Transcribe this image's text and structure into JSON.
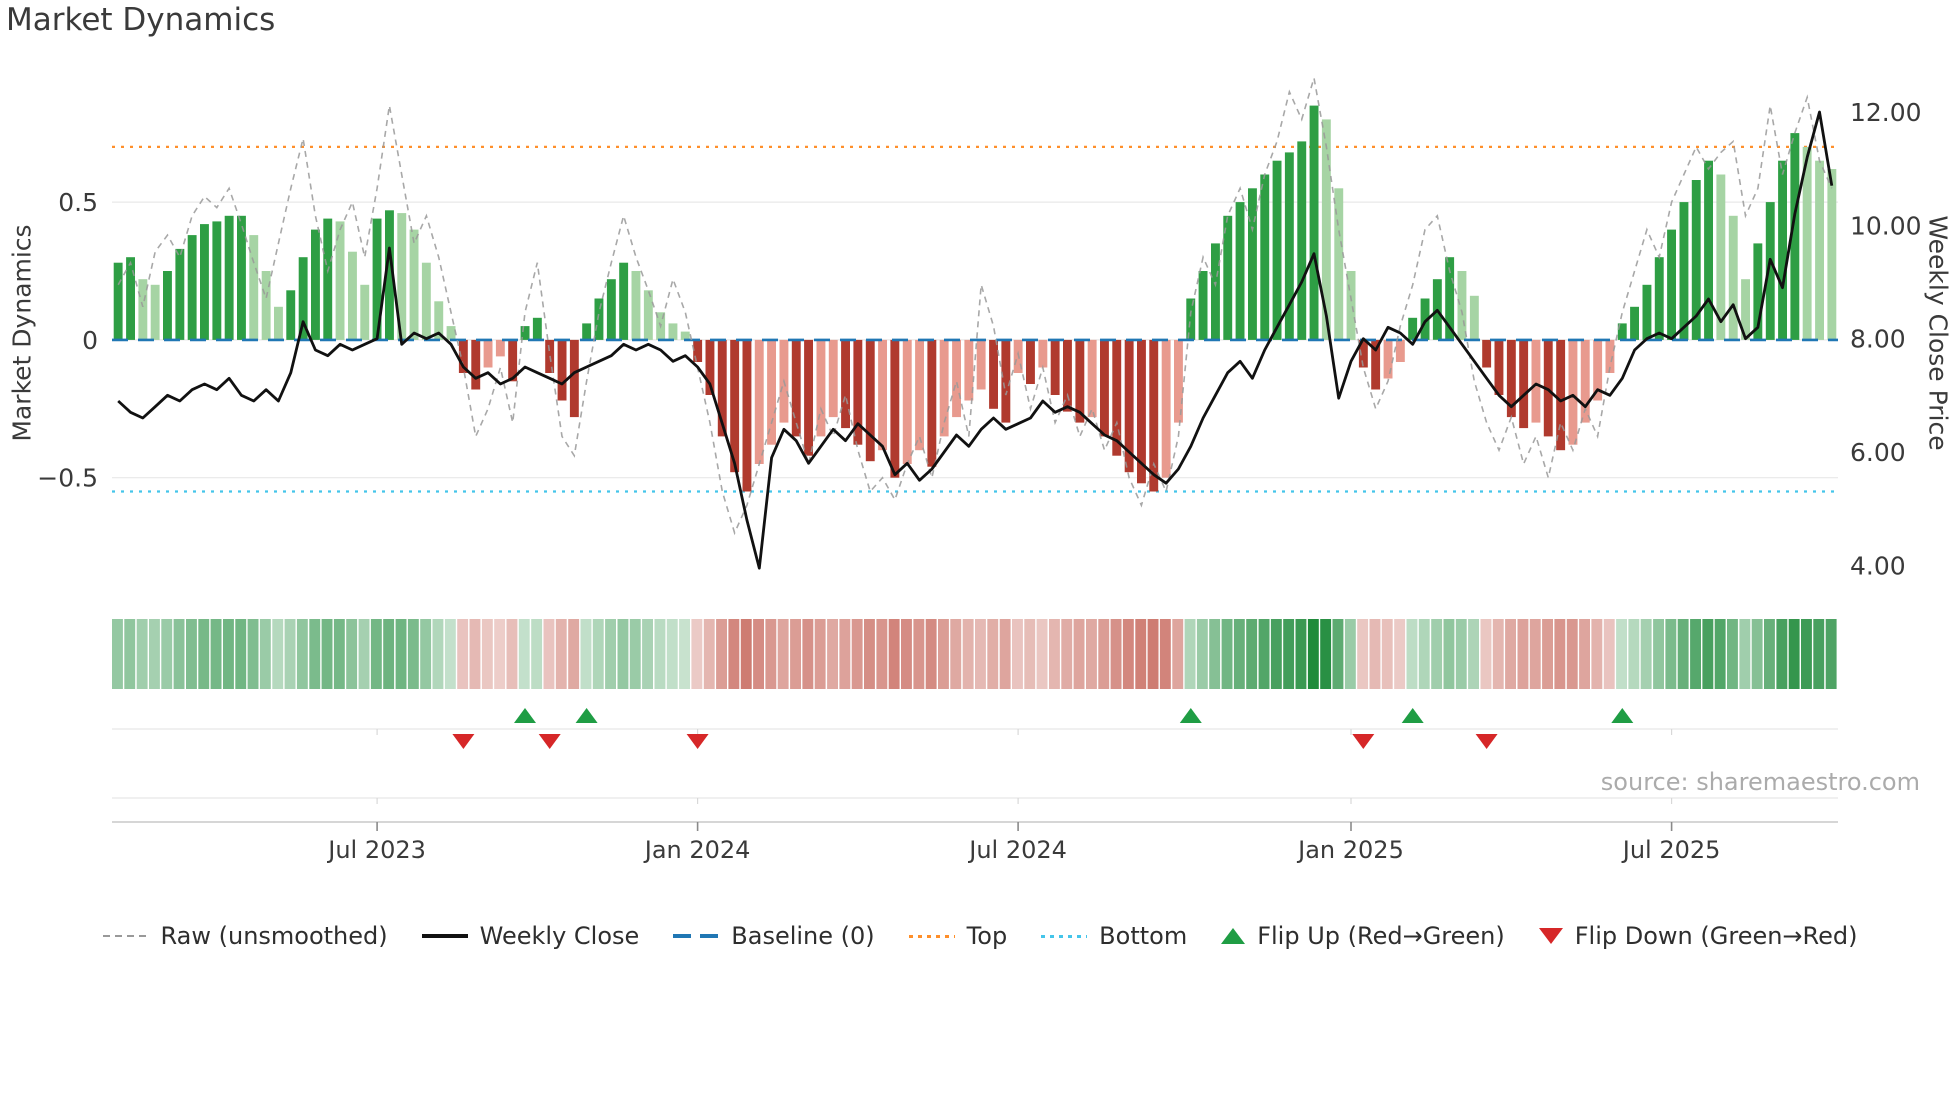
{
  "page": {
    "title": "Market Dynamics"
  },
  "colors": {
    "bar_up_strong": "#2e9e44",
    "bar_up_weak": "#a6d4a4",
    "bar_down_strong": "#b03a2e",
    "bar_down_weak": "#e89a8e",
    "raw_line": "#999999",
    "price_line": "#111111",
    "baseline": "#2077b4",
    "top_line": "#ff8f2a",
    "bottom_line": "#45c5ea",
    "flip_up": "#1f9d44",
    "flip_down": "#d62728",
    "heat_green": "#1f8b3b",
    "heat_red": "#bc4a3c",
    "grid": "#e8e8e8",
    "panel_line": "#e7e7e7",
    "axis_line": "#c9c9c9",
    "tick_mark": "#8a8a8a",
    "axis_text": "#3a3a3a"
  },
  "chart_data": {
    "type": "combo",
    "title": "Market Dynamics",
    "source": "source: sharemaestro.com",
    "x": {
      "freq": "weekly",
      "n": 140,
      "tick_weeks": [
        21,
        47,
        73,
        100,
        126
      ],
      "tick_labels": [
        "Jul 2023",
        "Jan 2024",
        "Jul 2024",
        "Jan 2025",
        "Jul 2025"
      ]
    },
    "left_axis": {
      "label": "Market Dynamics",
      "ticks": [
        0.5,
        0,
        -0.5
      ],
      "tick_labels": [
        "0.5",
        "0",
        "−0.5"
      ],
      "range": [
        -0.9,
        0.95
      ]
    },
    "right_axis": {
      "label": "Weekly Close Price",
      "ticks": [
        4,
        6,
        8,
        10,
        12
      ],
      "tick_labels": [
        "4.00",
        "6.00",
        "8.00",
        "10.00",
        "12.00"
      ],
      "range": [
        3.6,
        12.6
      ]
    },
    "reference_lines": {
      "baseline": 0,
      "top": 0.7,
      "bottom": -0.55
    },
    "series": [
      {
        "name": "Market Dynamics",
        "type": "bar",
        "axis": "left",
        "values": [
          0.28,
          0.3,
          0.22,
          0.2,
          0.25,
          0.33,
          0.38,
          0.42,
          0.43,
          0.45,
          0.45,
          0.38,
          0.25,
          0.12,
          0.18,
          0.3,
          0.4,
          0.44,
          0.43,
          0.32,
          0.2,
          0.44,
          0.47,
          0.46,
          0.4,
          0.28,
          0.14,
          0.05,
          -0.12,
          -0.18,
          -0.1,
          -0.06,
          -0.15,
          0.05,
          0.08,
          -0.12,
          -0.22,
          -0.28,
          0.06,
          0.15,
          0.22,
          0.28,
          0.25,
          0.18,
          0.1,
          0.06,
          0.03,
          -0.08,
          -0.2,
          -0.35,
          -0.48,
          -0.55,
          -0.45,
          -0.38,
          -0.3,
          -0.35,
          -0.42,
          -0.35,
          -0.28,
          -0.32,
          -0.38,
          -0.44,
          -0.4,
          -0.5,
          -0.45,
          -0.4,
          -0.46,
          -0.35,
          -0.28,
          -0.22,
          -0.18,
          -0.25,
          -0.3,
          -0.12,
          -0.16,
          -0.1,
          -0.2,
          -0.26,
          -0.3,
          -0.28,
          -0.35,
          -0.42,
          -0.48,
          -0.52,
          -0.55,
          -0.5,
          -0.3,
          0.15,
          0.25,
          0.35,
          0.45,
          0.5,
          0.55,
          0.6,
          0.65,
          0.68,
          0.72,
          0.85,
          0.8,
          0.55,
          0.25,
          -0.1,
          -0.18,
          -0.14,
          -0.08,
          0.08,
          0.15,
          0.22,
          0.3,
          0.25,
          0.16,
          -0.1,
          -0.2,
          -0.28,
          -0.32,
          -0.3,
          -0.35,
          -0.4,
          -0.38,
          -0.3,
          -0.22,
          -0.12,
          0.06,
          0.12,
          0.2,
          0.3,
          0.4,
          0.5,
          0.58,
          0.65,
          0.6,
          0.45,
          0.22,
          0.35,
          0.5,
          0.65,
          0.75,
          0.7,
          0.65,
          0.62
        ]
      },
      {
        "name": "Raw (unsmoothed)",
        "type": "line",
        "style": "dashed",
        "axis": "left",
        "values": [
          0.2,
          0.28,
          0.12,
          0.32,
          0.38,
          0.3,
          0.45,
          0.52,
          0.48,
          0.55,
          0.42,
          0.28,
          0.15,
          0.35,
          0.55,
          0.73,
          0.45,
          0.25,
          0.4,
          0.5,
          0.3,
          0.55,
          0.85,
          0.6,
          0.35,
          0.45,
          0.3,
          0.1,
          -0.1,
          -0.35,
          -0.25,
          -0.1,
          -0.3,
          0.1,
          0.28,
          -0.05,
          -0.35,
          -0.42,
          -0.15,
          0.1,
          0.28,
          0.45,
          0.3,
          0.18,
          0.05,
          0.22,
          0.1,
          -0.1,
          -0.3,
          -0.55,
          -0.7,
          -0.6,
          -0.45,
          -0.3,
          -0.15,
          -0.3,
          -0.45,
          -0.25,
          -0.35,
          -0.2,
          -0.4,
          -0.55,
          -0.5,
          -0.58,
          -0.45,
          -0.35,
          -0.5,
          -0.3,
          -0.15,
          -0.35,
          0.2,
          0.05,
          -0.2,
          -0.05,
          -0.25,
          -0.1,
          -0.3,
          -0.2,
          -0.35,
          -0.25,
          -0.4,
          -0.3,
          -0.5,
          -0.6,
          -0.45,
          -0.55,
          -0.35,
          0.1,
          0.3,
          0.2,
          0.45,
          0.55,
          0.4,
          0.6,
          0.72,
          0.9,
          0.8,
          0.95,
          0.7,
          0.4,
          0.15,
          -0.1,
          -0.25,
          -0.15,
          0.05,
          0.2,
          0.4,
          0.45,
          0.25,
          0.1,
          -0.15,
          -0.3,
          -0.4,
          -0.28,
          -0.45,
          -0.35,
          -0.5,
          -0.3,
          -0.4,
          -0.25,
          -0.35,
          -0.1,
          0.1,
          0.25,
          0.4,
          0.3,
          0.5,
          0.6,
          0.7,
          0.62,
          0.68,
          0.72,
          0.45,
          0.55,
          0.85,
          0.6,
          0.75,
          0.88,
          0.65,
          0.55
        ]
      },
      {
        "name": "Weekly Close",
        "type": "line",
        "axis": "right",
        "values": [
          6.9,
          6.7,
          6.6,
          6.8,
          7.0,
          6.9,
          7.1,
          7.2,
          7.1,
          7.3,
          7.0,
          6.9,
          7.1,
          6.9,
          7.4,
          8.3,
          7.8,
          7.7,
          7.9,
          7.8,
          7.9,
          8.0,
          9.6,
          7.9,
          8.1,
          8.0,
          8.1,
          7.9,
          7.5,
          7.3,
          7.4,
          7.2,
          7.3,
          7.5,
          7.4,
          7.3,
          7.2,
          7.4,
          7.5,
          7.6,
          7.7,
          7.9,
          7.8,
          7.9,
          7.8,
          7.6,
          7.7,
          7.5,
          7.2,
          6.5,
          5.8,
          4.8,
          3.95,
          5.9,
          6.4,
          6.2,
          5.8,
          6.1,
          6.4,
          6.2,
          6.5,
          6.3,
          6.1,
          5.6,
          5.8,
          5.5,
          5.7,
          6.0,
          6.3,
          6.1,
          6.4,
          6.6,
          6.4,
          6.5,
          6.6,
          6.9,
          6.7,
          6.8,
          6.7,
          6.5,
          6.3,
          6.2,
          6.0,
          5.8,
          5.6,
          5.45,
          5.7,
          6.1,
          6.6,
          7.0,
          7.4,
          7.6,
          7.3,
          7.8,
          8.2,
          8.6,
          9.0,
          9.5,
          8.4,
          6.95,
          7.6,
          8.0,
          7.8,
          8.2,
          8.1,
          7.9,
          8.3,
          8.5,
          8.2,
          7.9,
          7.6,
          7.3,
          7.0,
          6.8,
          7.0,
          7.2,
          7.1,
          6.9,
          7.0,
          6.8,
          7.1,
          7.0,
          7.3,
          7.8,
          8.0,
          8.1,
          8.0,
          8.2,
          8.4,
          8.7,
          8.3,
          8.6,
          8.0,
          8.2,
          9.4,
          8.9,
          10.2,
          11.2,
          12.0,
          10.7
        ]
      }
    ],
    "markers": {
      "flip_up_weeks": [
        33,
        38,
        87,
        105,
        122
      ],
      "flip_down_weeks": [
        28,
        35,
        47,
        101,
        111
      ]
    }
  },
  "legend": {
    "items": [
      {
        "label": "Raw (unsmoothed)",
        "swatch": "dashed",
        "color": "#999999"
      },
      {
        "label": "Weekly Close",
        "swatch": "solid",
        "color": "#111111"
      },
      {
        "label": "Baseline (0)",
        "swatch": "longdash",
        "color": "#2077b4"
      },
      {
        "label": "Top",
        "swatch": "dotted",
        "color": "#ff8f2a"
      },
      {
        "label": "Bottom",
        "swatch": "dotted",
        "color": "#45c5ea"
      },
      {
        "label": "Flip Up (Red→Green)",
        "swatch": "tri-up",
        "color": "#1f9d44"
      },
      {
        "label": "Flip Down (Green→Red)",
        "swatch": "tri-down",
        "color": "#d62728"
      }
    ]
  }
}
